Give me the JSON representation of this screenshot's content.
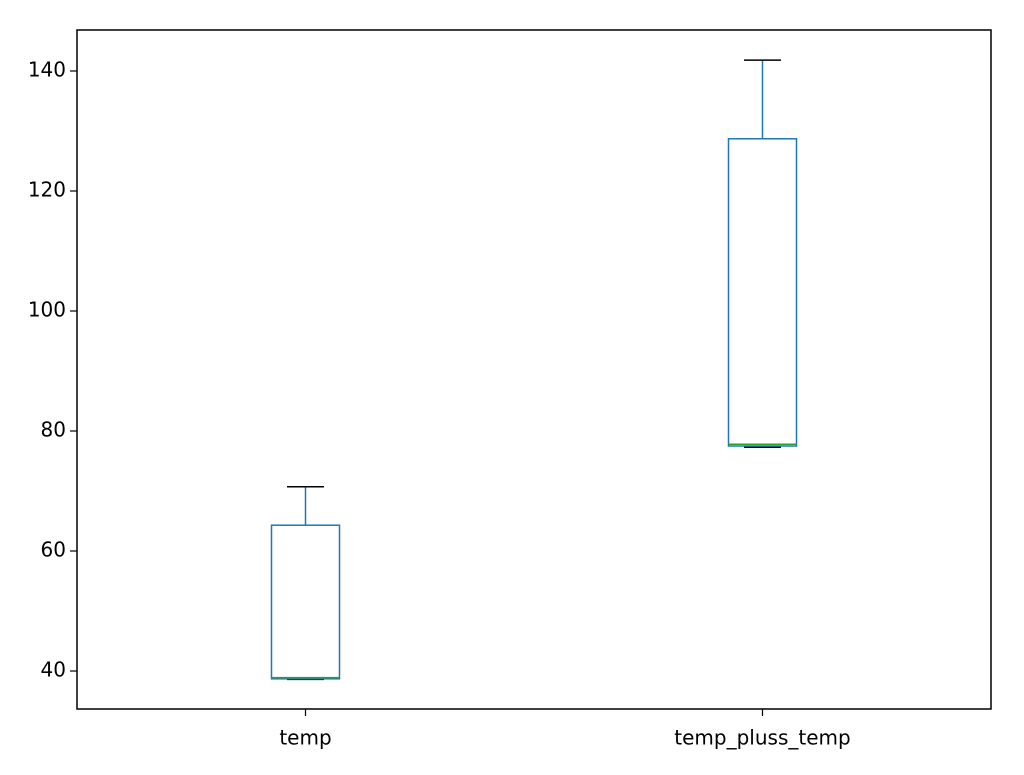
{
  "chart_data": {
    "type": "box",
    "categories": [
      "temp",
      "temp_pluss_temp"
    ],
    "boxes": [
      {
        "min": 38.6,
        "q1": 38.7,
        "median": 38.9,
        "q3": 64.3,
        "max": 70.7
      },
      {
        "min": 77.3,
        "q1": 77.5,
        "median": 77.8,
        "q3": 128.7,
        "max": 141.8
      }
    ],
    "box_color": "#1f77b4",
    "median_color": "#2ca02c",
    "cap_color": "#000000",
    "ylim": [
      33.67,
      146.83
    ],
    "yticks": [
      40,
      60,
      80,
      100,
      120,
      140
    ],
    "grid": false
  }
}
